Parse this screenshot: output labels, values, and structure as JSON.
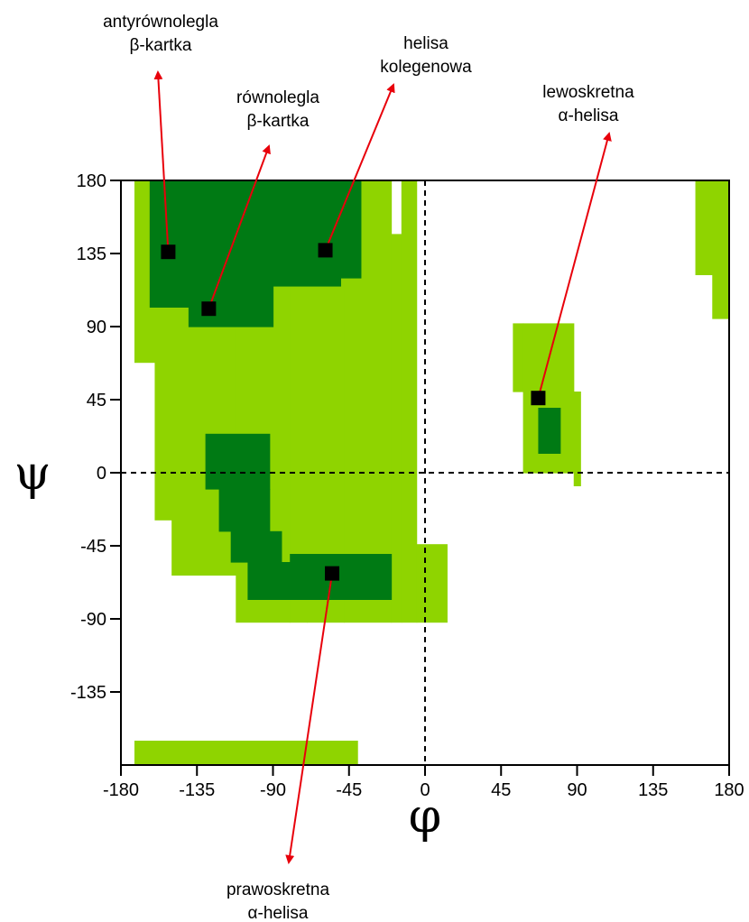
{
  "chart_data": {
    "type": "ramachandran",
    "xlabel": "φ",
    "ylabel": "ψ",
    "xlim": [
      -180,
      180
    ],
    "ylim": [
      -180,
      180
    ],
    "xticks": [
      -180,
      -135,
      -90,
      -45,
      0,
      45,
      90,
      135,
      180
    ],
    "yticks": [
      180,
      135,
      90,
      45,
      0,
      -45,
      -90,
      -135
    ],
    "colors": {
      "allowed": "#8fd400",
      "favored": "#007a14",
      "marker": "#000000",
      "arrow": "#e8000b"
    },
    "regions": {
      "allowed": [
        [
          -172,
          -160,
          68,
          180
        ],
        [
          -160,
          -150,
          -29,
          180
        ],
        [
          -150,
          -140,
          -63,
          180
        ],
        [
          -140,
          -112,
          -63,
          180
        ],
        [
          -112,
          -80,
          -92,
          180
        ],
        [
          -80,
          -70,
          -92,
          180
        ],
        [
          -70,
          -60,
          -92,
          180
        ],
        [
          -60,
          -48,
          -92,
          180
        ],
        [
          -48,
          -20,
          -92,
          180
        ],
        [
          -20,
          -14,
          -92,
          147
        ],
        [
          -14,
          -5,
          -92,
          180
        ],
        [
          -5,
          13,
          -92,
          -44
        ],
        [
          52,
          58,
          50,
          92
        ],
        [
          58,
          88,
          0,
          92
        ],
        [
          88,
          92,
          -8,
          50
        ],
        [
          -172,
          -40,
          -180,
          -165
        ],
        [
          160,
          170,
          122,
          180
        ],
        [
          170,
          180,
          95,
          180
        ]
      ],
      "favored": [
        [
          -163,
          -140,
          102,
          180
        ],
        [
          -140,
          -90,
          90,
          180
        ],
        [
          -90,
          -50,
          115,
          180
        ],
        [
          -50,
          -38,
          120,
          180
        ],
        [
          -130,
          -92,
          -10,
          24
        ],
        [
          -122,
          -92,
          -36,
          -10
        ],
        [
          -115,
          -85,
          -55,
          -36
        ],
        [
          -105,
          -80,
          -78,
          -55
        ],
        [
          -80,
          -20,
          -78,
          -50
        ],
        [
          67,
          80,
          12,
          40
        ]
      ]
    },
    "markers": [
      {
        "phi": -152,
        "psi": 136
      },
      {
        "phi": -128,
        "psi": 101
      },
      {
        "phi": -59,
        "psi": 137
      },
      {
        "phi": -55,
        "psi": -62
      },
      {
        "phi": 67,
        "psi": 46
      }
    ],
    "annotations": [
      {
        "lines": [
          "antyrównolegla",
          "β-kartka"
        ],
        "phi": -152,
        "psi": 136
      },
      {
        "lines": [
          "równolegla",
          "β-kartka"
        ],
        "phi": -128,
        "psi": 101
      },
      {
        "lines": [
          "helisa",
          "kolegenowa"
        ],
        "phi": -59,
        "psi": 137
      },
      {
        "lines": [
          "lewoskretna",
          "α-helisa"
        ],
        "phi": 67,
        "psi": 46
      },
      {
        "lines": [
          "prawoskretna",
          "α-helisa"
        ],
        "phi": -55,
        "psi": -62
      }
    ]
  }
}
